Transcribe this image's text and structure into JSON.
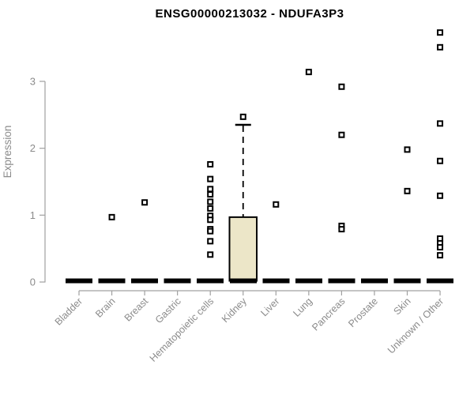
{
  "chart_data": {
    "type": "boxplot",
    "title": "ENSG00000213032 - NDUFA3P3",
    "ylabel": "Expression",
    "xlabel": "",
    "ylim": [
      0,
      3.8
    ],
    "yticks": [
      0,
      1,
      2,
      3
    ],
    "grid": false,
    "legend": null,
    "marker": "open-square",
    "categories": [
      "Bladder",
      "Brain",
      "Breast",
      "Gastric",
      "Hematopoietic cells",
      "Kidney",
      "Liver",
      "Lung",
      "Pancreas",
      "Prostate",
      "Skin",
      "Unknown / Other"
    ],
    "series": [
      {
        "category": "Bladder",
        "median": 0,
        "q1": 0,
        "q3": 0,
        "whisker_low": 0,
        "whisker_high": 0,
        "outliers": []
      },
      {
        "category": "Brain",
        "median": 0,
        "q1": 0,
        "q3": 0,
        "whisker_low": 0,
        "whisker_high": 0,
        "outliers": [
          0.97
        ]
      },
      {
        "category": "Breast",
        "median": 0,
        "q1": 0,
        "q3": 0,
        "whisker_low": 0,
        "whisker_high": 0,
        "outliers": [
          1.19
        ]
      },
      {
        "category": "Gastric",
        "median": 0,
        "q1": 0,
        "q3": 0,
        "whisker_low": 0,
        "whisker_high": 0,
        "outliers": []
      },
      {
        "category": "Hematopoietic cells",
        "median": 0,
        "q1": 0,
        "q3": 0,
        "whisker_low": 0,
        "whisker_high": 0,
        "outliers": [
          1.76,
          1.54,
          1.39,
          1.31,
          1.2,
          1.1,
          0.99,
          0.93,
          0.79,
          0.76,
          0.61,
          0.41
        ]
      },
      {
        "category": "Kidney",
        "median": 0,
        "q1": 0,
        "q3": 0.97,
        "whisker_low": 0,
        "whisker_high": 2.35,
        "outliers": [
          2.47
        ]
      },
      {
        "category": "Liver",
        "median": 0,
        "q1": 0,
        "q3": 0,
        "whisker_low": 0,
        "whisker_high": 0,
        "outliers": [
          1.16
        ]
      },
      {
        "category": "Lung",
        "median": 0,
        "q1": 0,
        "q3": 0,
        "whisker_low": 0,
        "whisker_high": 0,
        "outliers": [
          3.14
        ]
      },
      {
        "category": "Pancreas",
        "median": 0,
        "q1": 0,
        "q3": 0,
        "whisker_low": 0,
        "whisker_high": 0,
        "outliers": [
          2.92,
          2.2,
          0.84,
          0.79
        ]
      },
      {
        "category": "Prostate",
        "median": 0,
        "q1": 0,
        "q3": 0,
        "whisker_low": 0,
        "whisker_high": 0,
        "outliers": []
      },
      {
        "category": "Skin",
        "median": 0,
        "q1": 0,
        "q3": 0,
        "whisker_low": 0,
        "whisker_high": 0,
        "outliers": [
          1.98,
          1.36
        ]
      },
      {
        "category": "Unknown / Other",
        "median": 0,
        "q1": 0,
        "q3": 0,
        "whisker_low": 0,
        "whisker_high": 0,
        "outliers": [
          3.73,
          3.51,
          2.37,
          1.81,
          1.29,
          0.65,
          0.58,
          0.52,
          0.4
        ]
      }
    ],
    "colors": {
      "box_fill": "#ECE6C8",
      "box_stroke": "#000000",
      "median": "#000000",
      "whisker": "#000000",
      "outlier_stroke": "#000000",
      "outlier_fill": "#FFFFFF",
      "axis_line": "#A0A0A0",
      "axis_text": "#8B8B8B",
      "title": "#000000",
      "background": "#FFFFFF"
    }
  }
}
